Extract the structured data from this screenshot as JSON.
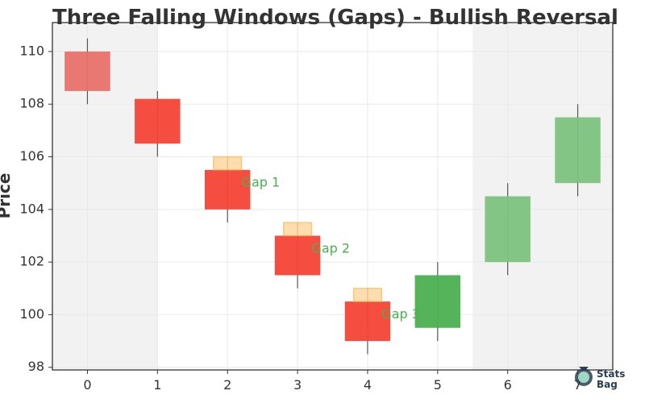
{
  "chart_data": {
    "type": "candlestick",
    "title": "Three Falling Windows (Gaps) - Bullish Reversal",
    "xlabel": "",
    "ylabel": "Price",
    "x": [
      0,
      1,
      2,
      3,
      4,
      5,
      6,
      7
    ],
    "xlim": [
      -0.5,
      7.5
    ],
    "ylim": [
      97.9,
      111.1
    ],
    "xticks": [
      "0",
      "1",
      "2",
      "3",
      "4",
      "5",
      "6",
      "7"
    ],
    "yticks": [
      "98",
      "100",
      "102",
      "104",
      "106",
      "108",
      "110"
    ],
    "grid": true,
    "candles": [
      {
        "x": 0,
        "open": 110.0,
        "high": 110.5,
        "low": 108.0,
        "close": 108.5,
        "color": "#e8706a"
      },
      {
        "x": 1,
        "open": 108.2,
        "high": 108.5,
        "low": 106.0,
        "close": 106.5,
        "color": "#f44336"
      },
      {
        "x": 2,
        "open": 105.5,
        "high": 106.0,
        "low": 103.5,
        "close": 104.0,
        "color": "#f44336"
      },
      {
        "x": 3,
        "open": 103.0,
        "high": 103.5,
        "low": 101.0,
        "close": 101.5,
        "color": "#f44336"
      },
      {
        "x": 4,
        "open": 100.5,
        "high": 101.0,
        "low": 98.5,
        "close": 99.0,
        "color": "#f44336"
      },
      {
        "x": 5,
        "open": 99.5,
        "high": 102.0,
        "low": 99.0,
        "close": 101.5,
        "color": "#4caf50"
      },
      {
        "x": 6,
        "open": 102.0,
        "high": 105.0,
        "low": 101.5,
        "close": 104.5,
        "color": "#7bc27e"
      },
      {
        "x": 7,
        "open": 105.0,
        "high": 108.0,
        "low": 104.5,
        "close": 107.5,
        "color": "#7bc27e"
      }
    ],
    "gaps": [
      {
        "x": 2,
        "from": 105.5,
        "to": 106.0,
        "label": "Gap 1",
        "label_x": 2.2,
        "label_y": 105.0
      },
      {
        "x": 3,
        "from": 103.0,
        "to": 103.5,
        "label": "Gap 2",
        "label_x": 3.2,
        "label_y": 102.5
      },
      {
        "x": 4,
        "from": 100.5,
        "to": 101.0,
        "label": "Gap 3",
        "label_x": 4.2,
        "label_y": 100.0
      }
    ],
    "shaded_regions": [
      {
        "x_from": -0.5,
        "x_to": 1.0
      },
      {
        "x_from": 5.5,
        "x_to": 7.5
      }
    ],
    "colors": {
      "bearish": "#f44336",
      "bullish": "#4caf50",
      "gap_fill": "#ffd59a",
      "gap_edge": "#f5b041",
      "annotation": "#4caf50",
      "shade": "#f2f2f2"
    }
  },
  "watermark": {
    "line1": "Stats",
    "line2": "Bag"
  }
}
